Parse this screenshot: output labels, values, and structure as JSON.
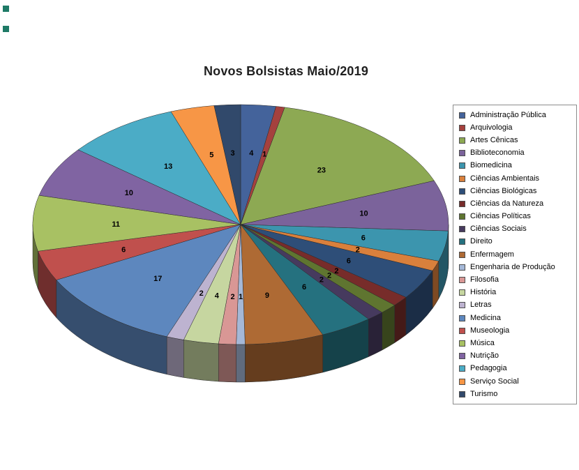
{
  "title": "Novos Bolsistas Maio/2019",
  "chart_data": {
    "type": "pie",
    "title": "Novos Bolsistas Maio/2019",
    "effect": "3d",
    "start_angle_deg": -90,
    "direction": "clockwise",
    "legend_position": "right",
    "data_labels": "values",
    "total": 147,
    "categories": [
      "Administração Pública",
      "Arquivologia",
      "Artes Cênicas",
      "Biblioteconomia",
      "Biomedicina",
      "Ciências Ambientais",
      "Ciências Biológicas",
      "Ciências da Natureza",
      "Ciências Políticas",
      "Ciências Sociais",
      "Direito",
      "Enfermagem",
      "Engenharia de Produção",
      "Filosofia",
      "História",
      "Letras",
      "Medicina",
      "Museologia",
      "Música",
      "Nutrição",
      "Pedagogia",
      "Serviço Social",
      "Turismo"
    ],
    "values": [
      4,
      1,
      23,
      10,
      6,
      2,
      6,
      2,
      2,
      2,
      6,
      9,
      1,
      2,
      4,
      2,
      17,
      6,
      11,
      10,
      13,
      5,
      3
    ],
    "colors": [
      "#44639B",
      "#A5413E",
      "#8DA953",
      "#7B639B",
      "#3C95AE",
      "#D9803C",
      "#2E4E78",
      "#772C2A",
      "#5F7530",
      "#463A5E",
      "#25717F",
      "#AE6A34",
      "#A5B8D7",
      "#D99795",
      "#C6D6A0",
      "#BDB3D0",
      "#5D87BE",
      "#C0504D",
      "#A8C163",
      "#8064A2",
      "#4BACC6",
      "#F79646",
      "#31496B"
    ],
    "legend_border_color": "#8c8c8c",
    "background_color": "#FFFFFF"
  }
}
